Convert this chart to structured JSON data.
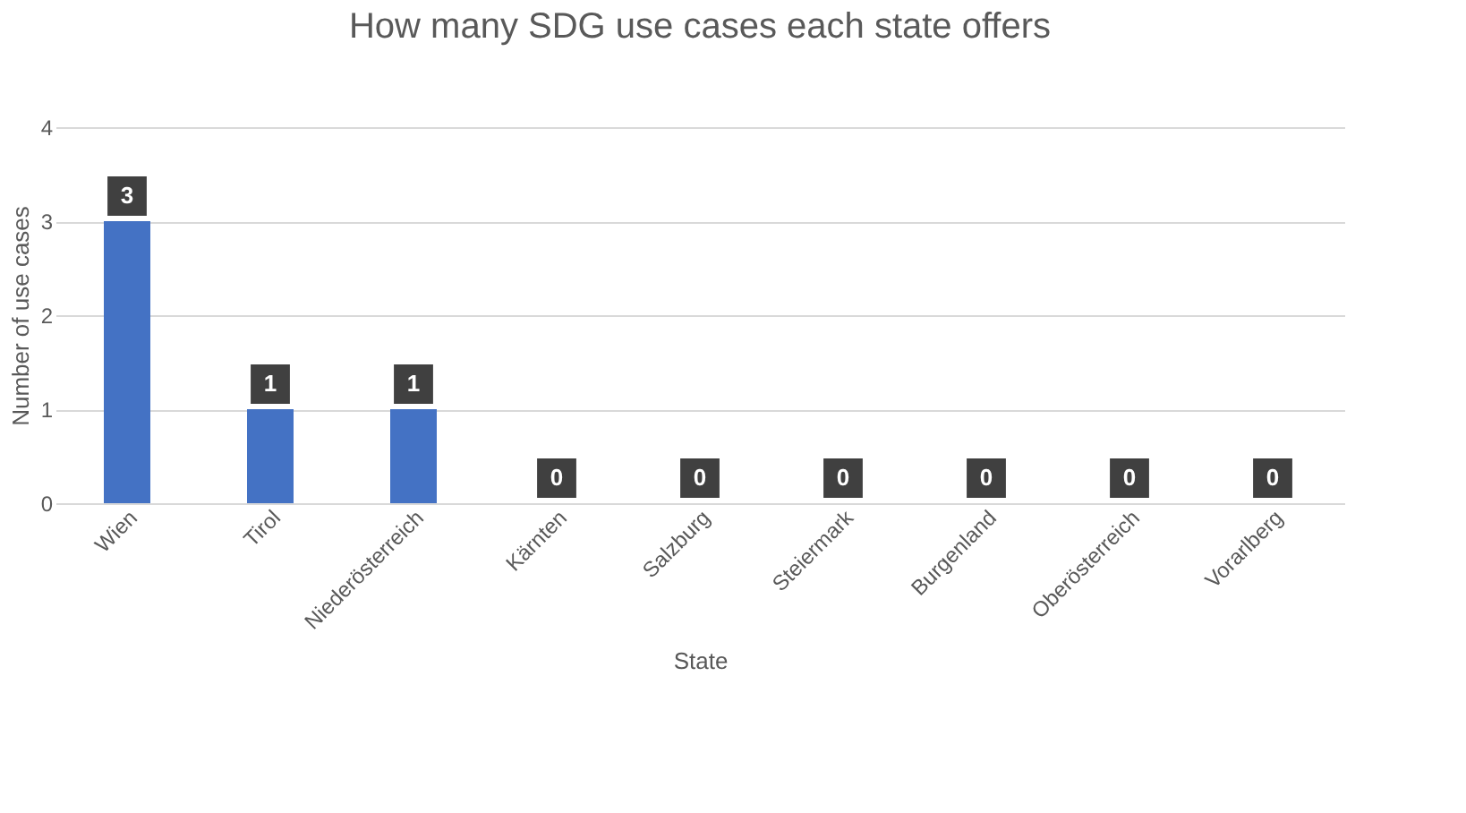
{
  "chart_data": {
    "type": "bar",
    "title": "How many SDG use cases each state offers",
    "xlabel": "State",
    "ylabel": "Number of use cases",
    "categories": [
      "Wien",
      "Tirol",
      "Niederösterreich",
      "Kärnten",
      "Salzburg",
      "Steiermark",
      "Burgenland",
      "Oberösterreich",
      "Vorarlberg"
    ],
    "values": [
      3,
      1,
      1,
      0,
      0,
      0,
      0,
      0,
      0
    ],
    "color": "#4472c4",
    "ylim": [
      0,
      4
    ],
    "yticks": [
      0,
      1,
      2,
      3,
      4
    ],
    "grid": "y",
    "data_labels": true
  }
}
